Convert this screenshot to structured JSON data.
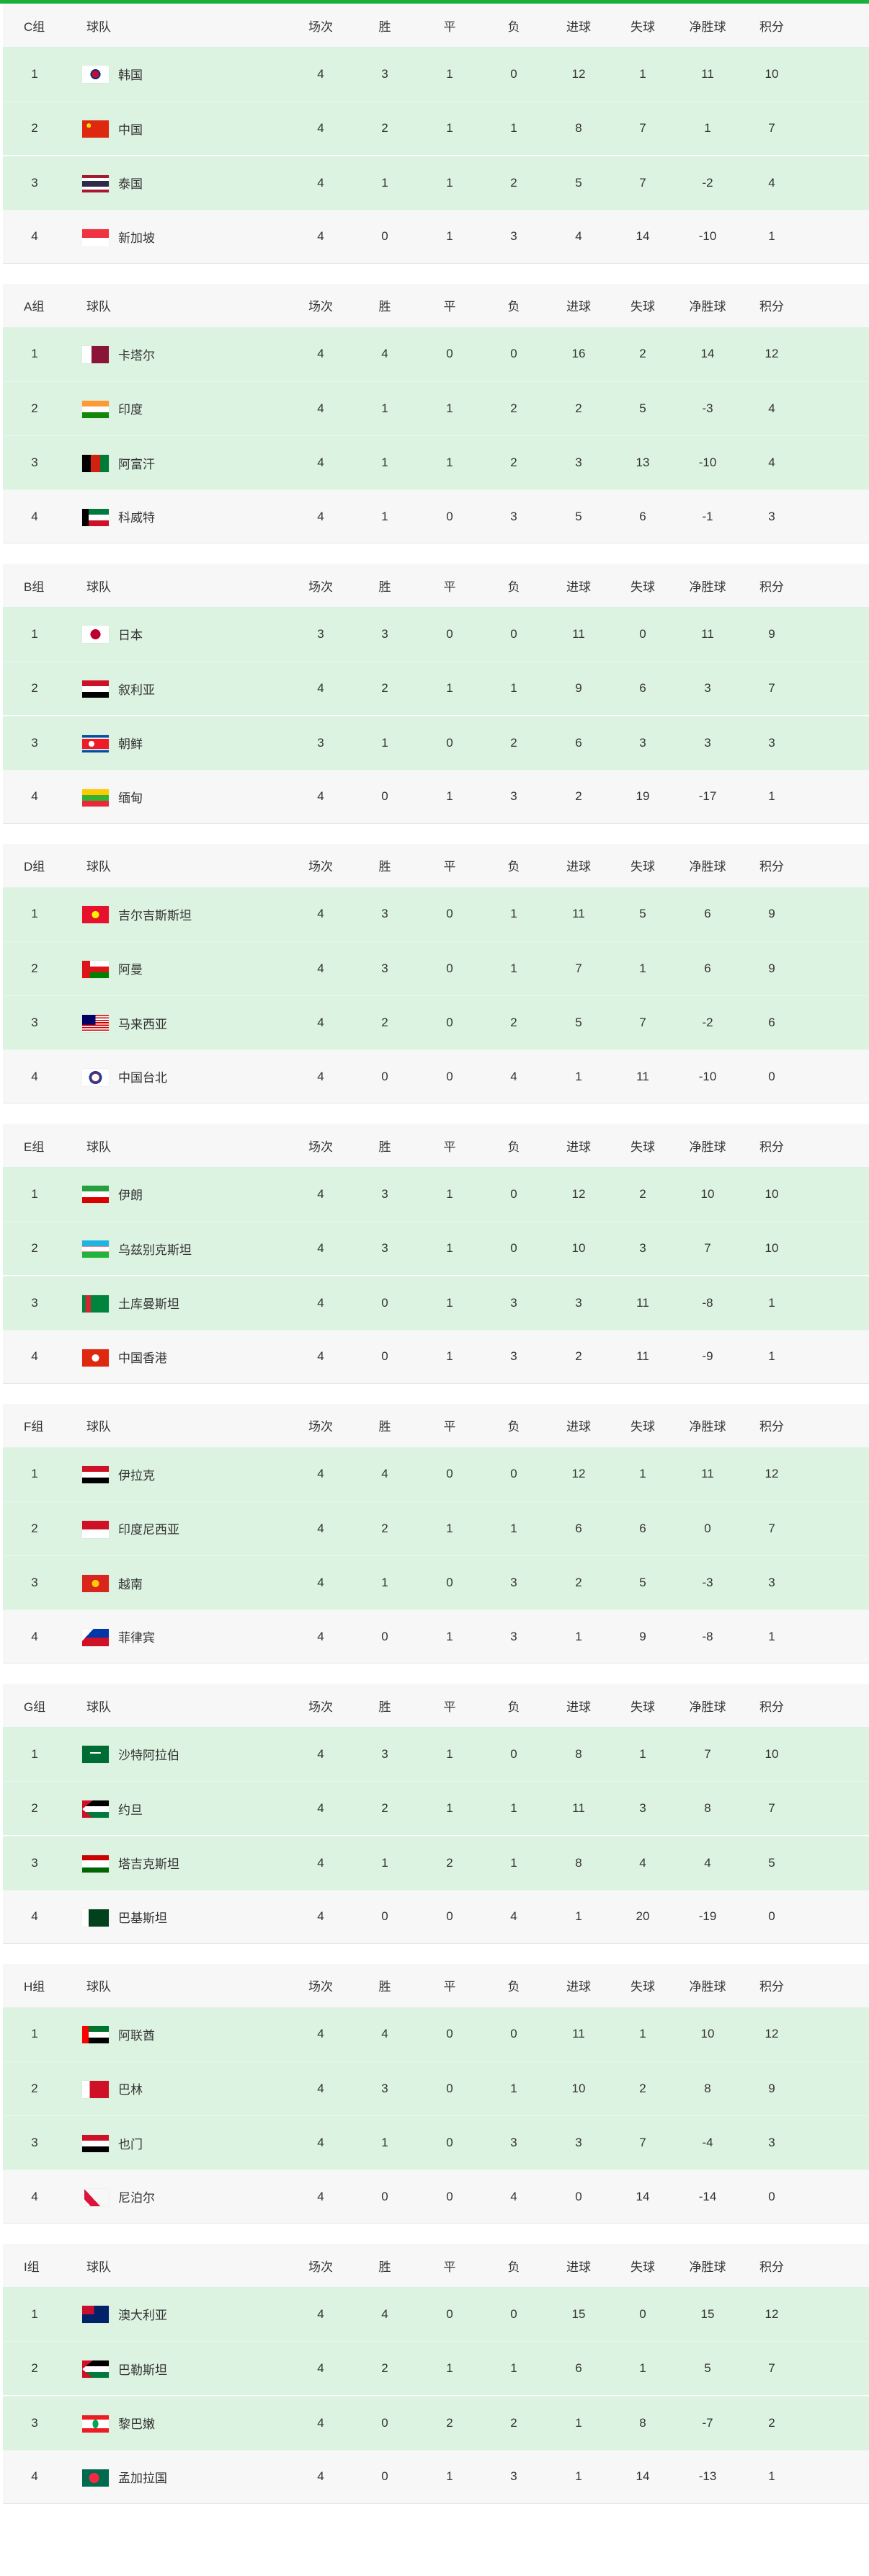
{
  "accent_color": "#18b03a",
  "qualified_row_color": "#ddf3e1",
  "columns": [
    "场次",
    "胜",
    "平",
    "负",
    "进球",
    "失球",
    "净胜球",
    "积分"
  ],
  "team_header": "球队",
  "groups": [
    {
      "label": "C组",
      "rows": [
        {
          "rank": "1",
          "flag": "flag-kr",
          "name": "韩国",
          "stats": [
            "4",
            "3",
            "1",
            "0",
            "12",
            "1",
            "11",
            "10"
          ]
        },
        {
          "rank": "2",
          "flag": "flag-cn",
          "name": "中国",
          "stats": [
            "4",
            "2",
            "1",
            "1",
            "8",
            "7",
            "1",
            "7"
          ]
        },
        {
          "rank": "3",
          "flag": "flag-th",
          "name": "泰国",
          "stats": [
            "4",
            "1",
            "1",
            "2",
            "5",
            "7",
            "-2",
            "4"
          ]
        },
        {
          "rank": "4",
          "flag": "flag-sg",
          "name": "新加坡",
          "stats": [
            "4",
            "0",
            "1",
            "3",
            "4",
            "14",
            "-10",
            "1"
          ]
        }
      ]
    },
    {
      "label": "A组",
      "rows": [
        {
          "rank": "1",
          "flag": "flag-qa",
          "name": "卡塔尔",
          "stats": [
            "4",
            "4",
            "0",
            "0",
            "16",
            "2",
            "14",
            "12"
          ]
        },
        {
          "rank": "2",
          "flag": "flag-in",
          "name": "印度",
          "stats": [
            "4",
            "1",
            "1",
            "2",
            "2",
            "5",
            "-3",
            "4"
          ]
        },
        {
          "rank": "3",
          "flag": "flag-af",
          "name": "阿富汗",
          "stats": [
            "4",
            "1",
            "1",
            "2",
            "3",
            "13",
            "-10",
            "4"
          ]
        },
        {
          "rank": "4",
          "flag": "flag-kw",
          "name": "科威特",
          "stats": [
            "4",
            "1",
            "0",
            "3",
            "5",
            "6",
            "-1",
            "3"
          ]
        }
      ]
    },
    {
      "label": "B组",
      "rows": [
        {
          "rank": "1",
          "flag": "flag-jp",
          "name": "日本",
          "stats": [
            "3",
            "3",
            "0",
            "0",
            "11",
            "0",
            "11",
            "9"
          ]
        },
        {
          "rank": "2",
          "flag": "flag-sy",
          "name": "叙利亚",
          "stats": [
            "4",
            "2",
            "1",
            "1",
            "9",
            "6",
            "3",
            "7"
          ]
        },
        {
          "rank": "3",
          "flag": "flag-kp",
          "name": "朝鲜",
          "stats": [
            "3",
            "1",
            "0",
            "2",
            "6",
            "3",
            "3",
            "3"
          ]
        },
        {
          "rank": "4",
          "flag": "flag-mm",
          "name": "缅甸",
          "stats": [
            "4",
            "0",
            "1",
            "3",
            "2",
            "19",
            "-17",
            "1"
          ]
        }
      ]
    },
    {
      "label": "D组",
      "rows": [
        {
          "rank": "1",
          "flag": "flag-kg",
          "name": "吉尔吉斯斯坦",
          "stats": [
            "4",
            "3",
            "0",
            "1",
            "11",
            "5",
            "6",
            "9"
          ]
        },
        {
          "rank": "2",
          "flag": "flag-om",
          "name": "阿曼",
          "stats": [
            "4",
            "3",
            "0",
            "1",
            "7",
            "1",
            "6",
            "9"
          ]
        },
        {
          "rank": "3",
          "flag": "flag-my",
          "name": "马来西亚",
          "stats": [
            "4",
            "2",
            "0",
            "2",
            "5",
            "7",
            "-2",
            "6"
          ]
        },
        {
          "rank": "4",
          "flag": "flag-tpe",
          "name": "中国台北",
          "stats": [
            "4",
            "0",
            "0",
            "4",
            "1",
            "11",
            "-10",
            "0"
          ]
        }
      ]
    },
    {
      "label": "E组",
      "rows": [
        {
          "rank": "1",
          "flag": "flag-ir",
          "name": "伊朗",
          "stats": [
            "4",
            "3",
            "1",
            "0",
            "12",
            "2",
            "10",
            "10"
          ]
        },
        {
          "rank": "2",
          "flag": "flag-uz",
          "name": "乌兹别克斯坦",
          "stats": [
            "4",
            "3",
            "1",
            "0",
            "10",
            "3",
            "7",
            "10"
          ]
        },
        {
          "rank": "3",
          "flag": "flag-tm",
          "name": "土库曼斯坦",
          "stats": [
            "4",
            "0",
            "1",
            "3",
            "3",
            "11",
            "-8",
            "1"
          ]
        },
        {
          "rank": "4",
          "flag": "flag-hk",
          "name": "中国香港",
          "stats": [
            "4",
            "0",
            "1",
            "3",
            "2",
            "11",
            "-9",
            "1"
          ]
        }
      ]
    },
    {
      "label": "F组",
      "rows": [
        {
          "rank": "1",
          "flag": "flag-iq",
          "name": "伊拉克",
          "stats": [
            "4",
            "4",
            "0",
            "0",
            "12",
            "1",
            "11",
            "12"
          ]
        },
        {
          "rank": "2",
          "flag": "flag-id",
          "name": "印度尼西亚",
          "stats": [
            "4",
            "2",
            "1",
            "1",
            "6",
            "6",
            "0",
            "7"
          ]
        },
        {
          "rank": "3",
          "flag": "flag-vn",
          "name": "越南",
          "stats": [
            "4",
            "1",
            "0",
            "3",
            "2",
            "5",
            "-3",
            "3"
          ]
        },
        {
          "rank": "4",
          "flag": "flag-ph",
          "name": "菲律宾",
          "stats": [
            "4",
            "0",
            "1",
            "3",
            "1",
            "9",
            "-8",
            "1"
          ]
        }
      ]
    },
    {
      "label": "G组",
      "rows": [
        {
          "rank": "1",
          "flag": "flag-sa",
          "name": "沙特阿拉伯",
          "stats": [
            "4",
            "3",
            "1",
            "0",
            "8",
            "1",
            "7",
            "10"
          ]
        },
        {
          "rank": "2",
          "flag": "flag-jo",
          "name": "约旦",
          "stats": [
            "4",
            "2",
            "1",
            "1",
            "11",
            "3",
            "8",
            "7"
          ]
        },
        {
          "rank": "3",
          "flag": "flag-tj",
          "name": "塔吉克斯坦",
          "stats": [
            "4",
            "1",
            "2",
            "1",
            "8",
            "4",
            "4",
            "5"
          ]
        },
        {
          "rank": "4",
          "flag": "flag-pk",
          "name": "巴基斯坦",
          "stats": [
            "4",
            "0",
            "0",
            "4",
            "1",
            "20",
            "-19",
            "0"
          ]
        }
      ]
    },
    {
      "label": "H组",
      "rows": [
        {
          "rank": "1",
          "flag": "flag-ae",
          "name": "阿联酋",
          "stats": [
            "4",
            "4",
            "0",
            "0",
            "11",
            "1",
            "10",
            "12"
          ]
        },
        {
          "rank": "2",
          "flag": "flag-bh",
          "name": "巴林",
          "stats": [
            "4",
            "3",
            "0",
            "1",
            "10",
            "2",
            "8",
            "9"
          ]
        },
        {
          "rank": "3",
          "flag": "flag-ye",
          "name": "也门",
          "stats": [
            "4",
            "1",
            "0",
            "3",
            "3",
            "7",
            "-4",
            "3"
          ]
        },
        {
          "rank": "4",
          "flag": "flag-np",
          "name": "尼泊尔",
          "stats": [
            "4",
            "0",
            "0",
            "4",
            "0",
            "14",
            "-14",
            "0"
          ]
        }
      ]
    },
    {
      "label": "I组",
      "rows": [
        {
          "rank": "1",
          "flag": "flag-au",
          "name": "澳大利亚",
          "stats": [
            "4",
            "4",
            "0",
            "0",
            "15",
            "0",
            "15",
            "12"
          ]
        },
        {
          "rank": "2",
          "flag": "flag-ps",
          "name": "巴勒斯坦",
          "stats": [
            "4",
            "2",
            "1",
            "1",
            "6",
            "1",
            "5",
            "7"
          ]
        },
        {
          "rank": "3",
          "flag": "flag-lb",
          "name": "黎巴嫩",
          "stats": [
            "4",
            "0",
            "2",
            "2",
            "1",
            "8",
            "-7",
            "2"
          ]
        },
        {
          "rank": "4",
          "flag": "flag-bd",
          "name": "孟加拉国",
          "stats": [
            "4",
            "0",
            "1",
            "3",
            "1",
            "14",
            "-13",
            "1"
          ]
        }
      ]
    }
  ]
}
